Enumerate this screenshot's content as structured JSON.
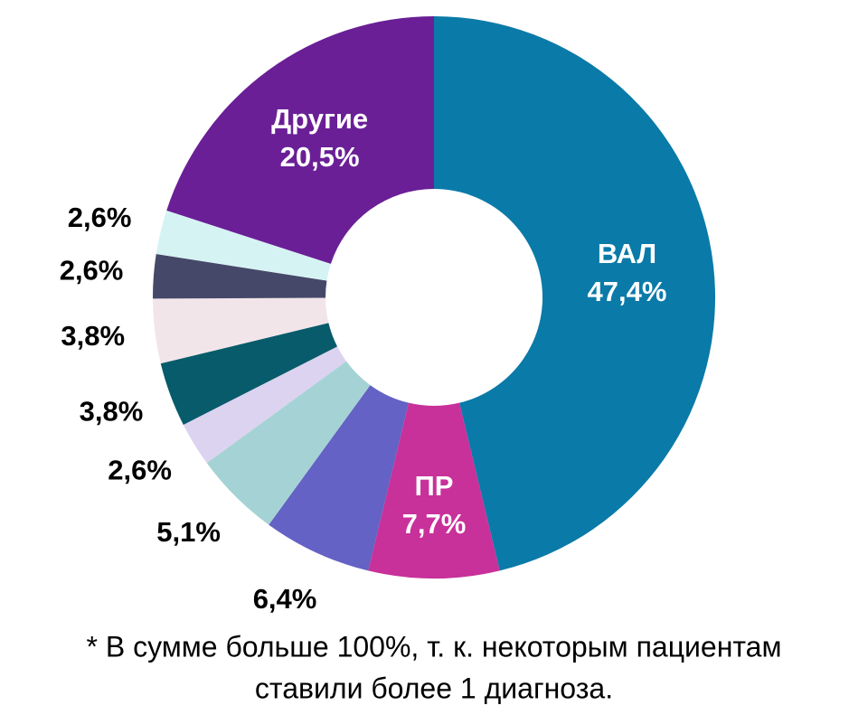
{
  "chart_data": {
    "type": "donut",
    "categories": [
      "ВАЛ",
      "ПР",
      null,
      null,
      null,
      null,
      null,
      null,
      null,
      "Другие"
    ],
    "values": [
      47.4,
      7.7,
      6.4,
      5.1,
      2.6,
      3.8,
      3.8,
      2.6,
      2.6,
      20.5
    ],
    "value_labels": [
      "47,4%",
      "7,7%",
      "6,4%",
      "5,1%",
      "2,6%",
      "3,8%",
      "3,8%",
      "2,6%",
      "2,6%",
      "20,5%"
    ],
    "colors": [
      "#0a7aa8",
      "#c8309a",
      "#6462c4",
      "#a5d3d5",
      "#dcd3f0",
      "#075b6a",
      "#f2e5ea",
      "#464869",
      "#d6f3f3",
      "#6a1f96"
    ],
    "footnote": [
      "* В сумме больше 100%, т. к. некоторым пациентам",
      "ставили более 1 диагноза."
    ]
  }
}
